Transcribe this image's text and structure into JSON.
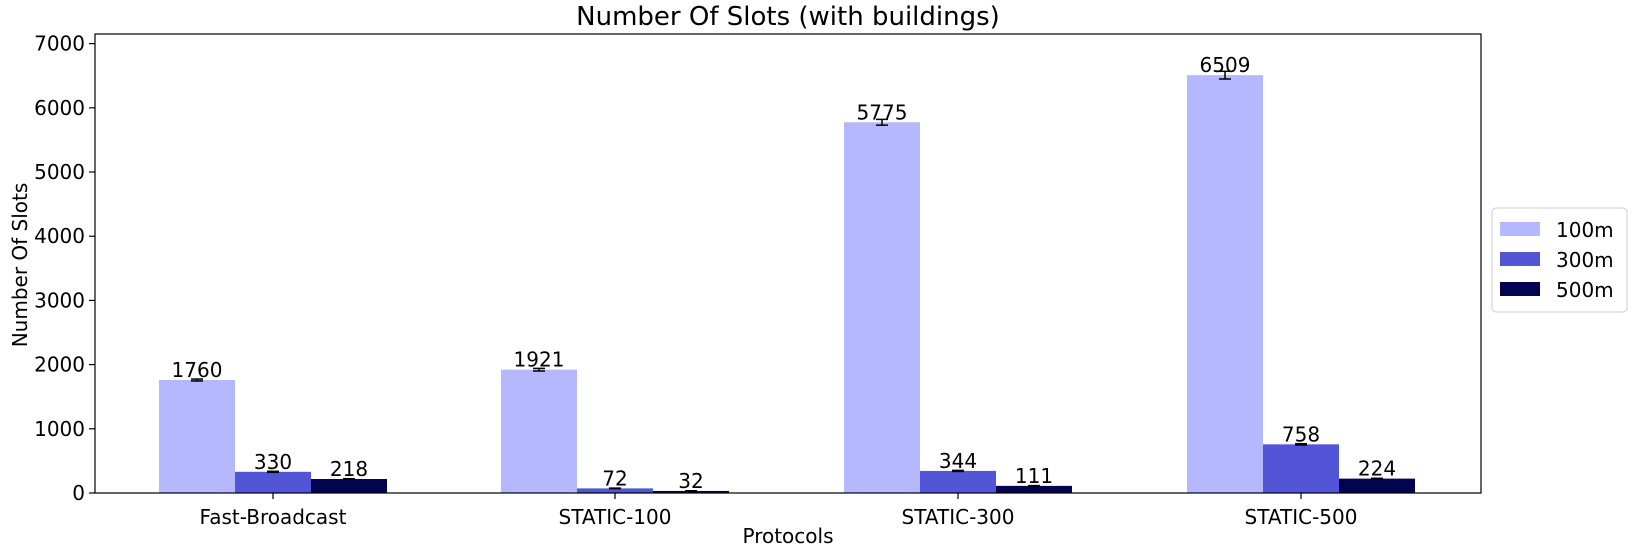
{
  "chart_data": {
    "type": "bar",
    "title": "Number Of Slots (with buildings)",
    "xlabel": "Protocols",
    "ylabel": "Number Of Slots",
    "categories": [
      "Fast-Broadcast",
      "STATIC-100",
      "STATIC-300",
      "STATIC-500"
    ],
    "series": [
      {
        "name": "100m",
        "color": "#b5b8fc",
        "values": [
          1760,
          1921,
          5775,
          6509
        ],
        "errors": [
          15,
          20,
          45,
          60
        ]
      },
      {
        "name": "300m",
        "color": "#5256d6",
        "values": [
          330,
          72,
          344,
          758
        ],
        "errors": [
          8,
          4,
          8,
          10
        ]
      },
      {
        "name": "500m",
        "color": "#03044f",
        "values": [
          218,
          32,
          111,
          224
        ],
        "errors": [
          5,
          3,
          4,
          5
        ]
      }
    ],
    "ylim": [
      0,
      7150
    ],
    "yticks": [
      0,
      1000,
      2000,
      3000,
      4000,
      5000,
      6000,
      7000
    ],
    "grid": false,
    "legend_position": "right"
  }
}
